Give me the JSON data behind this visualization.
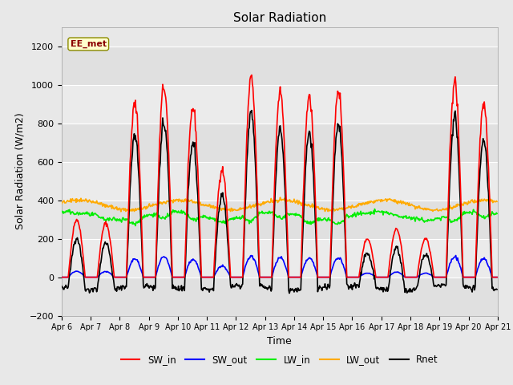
{
  "title": "Solar Radiation",
  "xlabel": "Time",
  "ylabel": "Solar Radiation (W/m2)",
  "ylim": [
    -200,
    1300
  ],
  "yticks": [
    -200,
    0,
    200,
    400,
    600,
    800,
    1000,
    1200
  ],
  "x_tick_labels": [
    "Apr 6",
    "Apr 7",
    "Apr 8",
    "Apr 9",
    "Apr 10",
    "Apr 11",
    "Apr 12",
    "Apr 13",
    "Apr 14",
    "Apr 15",
    "Apr 16",
    "Apr 17",
    "Apr 18",
    "Apr 19",
    "Apr 20",
    "Apr 21"
  ],
  "series_colors": {
    "SW_in": "#ff0000",
    "SW_out": "#0000ff",
    "LW_in": "#00ee00",
    "LW_out": "#ffaa00",
    "Rnet": "#000000"
  },
  "annotation_text": "EE_met",
  "bg_color": "#e8e8e8",
  "band_colors": [
    "#e0e0e0",
    "#ebebeb"
  ],
  "grid_color": "#ffffff"
}
